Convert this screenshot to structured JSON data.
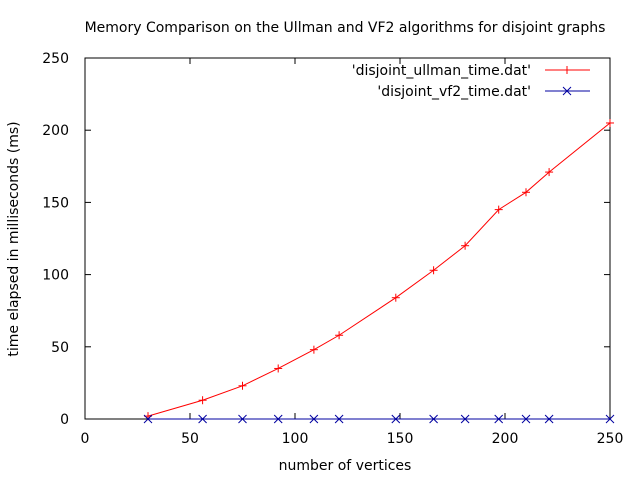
{
  "chart_data": {
    "type": "line",
    "title": "Memory Comparison on the Ullman and VF2 algorithms for disjoint graphs",
    "xlabel": "number of vertices",
    "ylabel": "time elapsed in milliseconds (ms)",
    "xlim": [
      0,
      250
    ],
    "ylim": [
      0,
      250
    ],
    "xticks": [
      0,
      50,
      100,
      150,
      200,
      250
    ],
    "yticks": [
      0,
      50,
      100,
      150,
      200,
      250
    ],
    "xtick_labels": [
      "0",
      "50",
      "100",
      "150",
      "200",
      "250"
    ],
    "ytick_labels": [
      "0",
      "50",
      "100",
      "150",
      "200",
      "250"
    ],
    "grid": false,
    "legend_position": "top-right",
    "series": [
      {
        "name": "'disjoint_ullman_time.dat'",
        "color": "#ff0000",
        "marker": "plus",
        "x": [
          30,
          56,
          75,
          92,
          109,
          121,
          148,
          166,
          181,
          197,
          210,
          221,
          250
        ],
        "y": [
          2,
          13,
          23,
          35,
          48,
          58,
          84,
          103,
          120,
          145,
          157,
          171,
          205
        ]
      },
      {
        "name": "'disjoint_vf2_time.dat'",
        "color": "#0000a0",
        "marker": "cross",
        "x": [
          30,
          56,
          75,
          92,
          109,
          121,
          148,
          166,
          181,
          197,
          210,
          221,
          250
        ],
        "y": [
          0,
          0,
          0,
          0,
          0,
          0,
          0,
          0,
          0,
          0,
          0,
          0,
          0
        ]
      }
    ]
  }
}
